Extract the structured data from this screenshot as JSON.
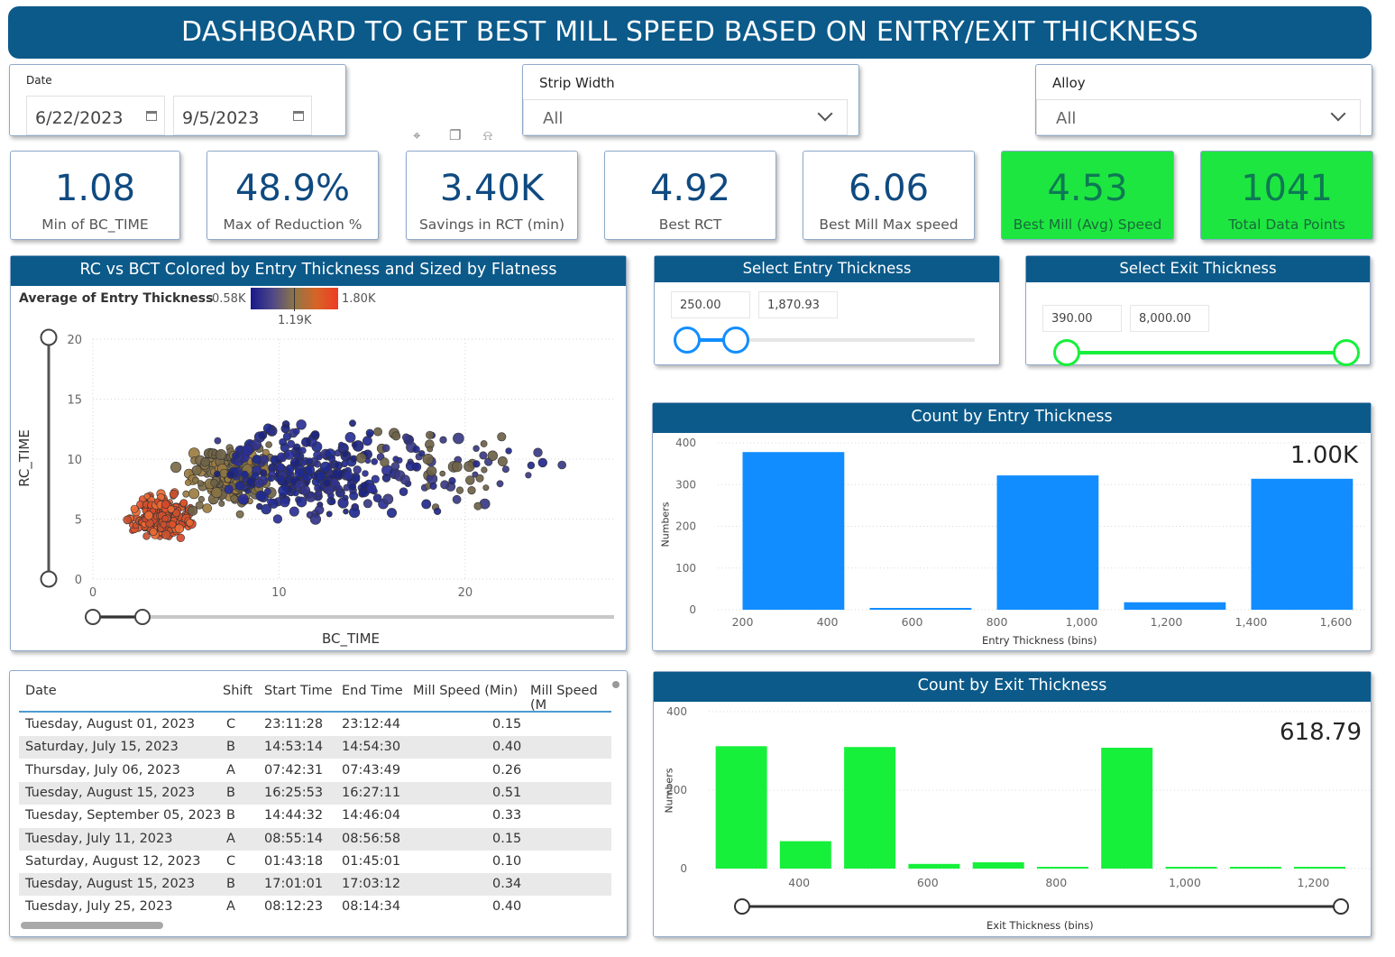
{
  "banner_title": "DASHBOARD TO GET BEST MILL SPEED BASED ON ENTRY/EXIT THICKNESS",
  "filters": {
    "date": {
      "label": "Date",
      "start": "6/22/2023",
      "end": "9/5/2023"
    },
    "strip_width": {
      "label": "Strip Width",
      "value": "All"
    },
    "alloy": {
      "label": "Alloy",
      "value": "All"
    }
  },
  "kpis": [
    {
      "value": "1.08",
      "label": "Min of BC_TIME",
      "highlight": false
    },
    {
      "value": "48.9%",
      "label": "Max of Reduction %",
      "highlight": false
    },
    {
      "value": "3.40K",
      "label": "Savings in RCT (min)",
      "highlight": false
    },
    {
      "value": "4.92",
      "label": "Best RCT",
      "highlight": false
    },
    {
      "value": "6.06",
      "label": "Best Mill Max speed",
      "highlight": false
    },
    {
      "value": "4.53",
      "label": "Best Mill (Avg) Speed",
      "highlight": true
    },
    {
      "value": "1041",
      "label": "Total Data Points",
      "highlight": true
    }
  ],
  "scatter": {
    "title": "RC vs BCT Colored by Entry Thickness and Sized by Flatness",
    "legend_title": "Average of Entry Thickness",
    "legend_min": "0.58K",
    "legend_mid": "1.19K",
    "legend_max": "1.80K",
    "xlabel": "BC_TIME",
    "ylabel": "RC_TIME",
    "x_ticks": [
      "0",
      "10",
      "20"
    ],
    "y_ticks": [
      "0",
      "5",
      "10",
      "15",
      "20"
    ]
  },
  "entry_slicer": {
    "title": "Select Entry Thickness",
    "min": "250.00",
    "max": "1,870.93"
  },
  "exit_slicer": {
    "title": "Select Exit Thickness",
    "min": "390.00",
    "max": "8,000.00"
  },
  "table": {
    "columns": [
      "Date",
      "Shift",
      "Start Time",
      "End Time",
      "Mill Speed (Min)",
      "Mill Speed (M"
    ],
    "rows": [
      [
        "Tuesday, August 01, 2023",
        "C",
        "23:11:28",
        "23:12:44",
        "0.15"
      ],
      [
        "Saturday, July 15, 2023",
        "B",
        "14:53:14",
        "14:54:30",
        "0.40"
      ],
      [
        "Thursday, July 06, 2023",
        "A",
        "07:42:31",
        "07:43:49",
        "0.26"
      ],
      [
        "Tuesday, August 15, 2023",
        "B",
        "16:25:53",
        "16:27:11",
        "0.51"
      ],
      [
        "Tuesday, September 05, 2023",
        "B",
        "14:44:32",
        "14:46:04",
        "0.33"
      ],
      [
        "Tuesday, July 11, 2023",
        "A",
        "08:55:14",
        "08:56:58",
        "0.15"
      ],
      [
        "Saturday, August 12, 2023",
        "C",
        "01:43:18",
        "01:45:01",
        "0.10"
      ],
      [
        "Tuesday, August 15, 2023",
        "B",
        "17:01:01",
        "17:03:12",
        "0.34"
      ],
      [
        "Tuesday, July 25, 2023",
        "A",
        "08:12:23",
        "08:14:34",
        "0.40"
      ]
    ]
  },
  "chart_data": [
    {
      "type": "scatter",
      "title": "RC vs BCT Colored by Entry Thickness and Sized by Flatness",
      "xlabel": "BC_TIME",
      "ylabel": "RC_TIME",
      "xlim": [
        0,
        28
      ],
      "ylim": [
        0,
        20
      ],
      "legend": "Average of Entry Thickness"
    },
    {
      "type": "bar",
      "title": "Count by Entry Thickness",
      "xlabel": "Entry Thickness (bins)",
      "ylabel": "Numbers",
      "ylim": [
        0,
        400
      ],
      "x_ticks": [
        "200",
        "400",
        "600",
        "800",
        "1,000",
        "1,200",
        "1,400",
        "1,600"
      ],
      "y_ticks": [
        "0",
        "100",
        "200",
        "300",
        "400"
      ],
      "bin_starts": [
        200,
        500,
        800,
        1100,
        1400
      ],
      "bin_width": 240,
      "x_range": [
        150,
        1650
      ],
      "values": [
        378,
        3,
        322,
        18,
        314
      ],
      "color": "#118dff",
      "card_value": "1.00K"
    },
    {
      "type": "bar",
      "title": "Count by Exit Thickness",
      "xlabel": "Exit Thickness (bins)",
      "ylabel": "Numbers",
      "ylim": [
        0,
        400
      ],
      "x_ticks": [
        "400",
        "600",
        "800",
        "1,000",
        "1,200"
      ],
      "y_ticks": [
        "0",
        "200",
        "400"
      ],
      "bin_starts": [
        270,
        370,
        470,
        570,
        670,
        770,
        870,
        970,
        1070,
        1170
      ],
      "bin_width": 80,
      "x_range": [
        265,
        1285
      ],
      "values": [
        312,
        70,
        310,
        12,
        16,
        2,
        308,
        1,
        3,
        1
      ],
      "color": "#16f03b",
      "card_value": "618.79"
    }
  ]
}
